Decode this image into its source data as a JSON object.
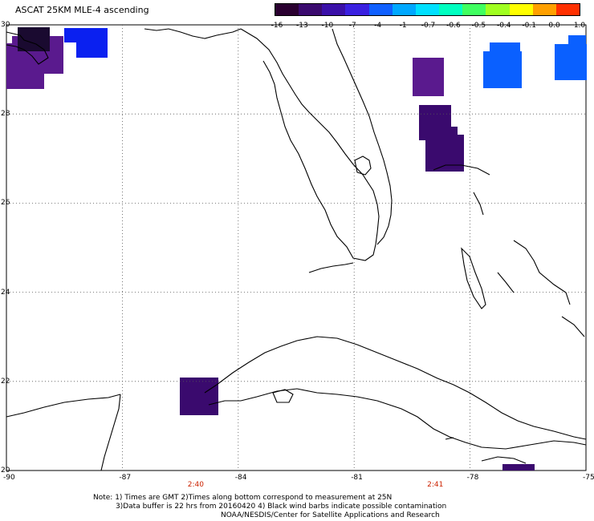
{
  "title": "ASCAT 25KM MLE-4 ascending",
  "colorbar": {
    "labels": [
      "-16",
      "-13",
      "-10",
      "-7",
      "-4",
      "-1",
      "-0.7",
      "-0.6",
      "-0.5",
      "-0.4",
      "-0.1",
      "0.0",
      "1.0"
    ],
    "colors": [
      "#2a0030",
      "#3a0a6e",
      "#3a10a8",
      "#3a20e0",
      "#1060ff",
      "#00a8ff",
      "#00e0ff",
      "#00ffc0",
      "#40ff60",
      "#a0ff20",
      "#ffff00",
      "#ffa000",
      "#ff3000"
    ]
  },
  "axes": {
    "lon_ticks": [
      "-90",
      "-87",
      "-84",
      "-81",
      "-78",
      "-75"
    ],
    "lat_ticks": [
      "30",
      "28",
      "26",
      "24",
      "22",
      "20"
    ],
    "lon_range": [
      -90,
      -75
    ],
    "lat_range": [
      20,
      30
    ],
    "grid": true
  },
  "time_labels": [
    {
      "lon": -85.1,
      "text": "2:40"
    },
    {
      "lon": -78.9,
      "text": "2:41"
    }
  ],
  "data_colors": {
    "dark_purple": "#3a0a6e",
    "purple": "#5a1a8e",
    "blue": "#0a20f0",
    "light_blue": "#0a60ff",
    "black": "#000000"
  },
  "notes": {
    "line1": "Note: 1) Times are GMT 2)Times along bottom correspond to measurement at 25N",
    "line2": "3)Data buffer is 22 hrs from 20160420 4) Black wind barbs indicate possible contamination",
    "line3": "NOAA/NESDIS/Center for Satellite Applications and Research"
  }
}
